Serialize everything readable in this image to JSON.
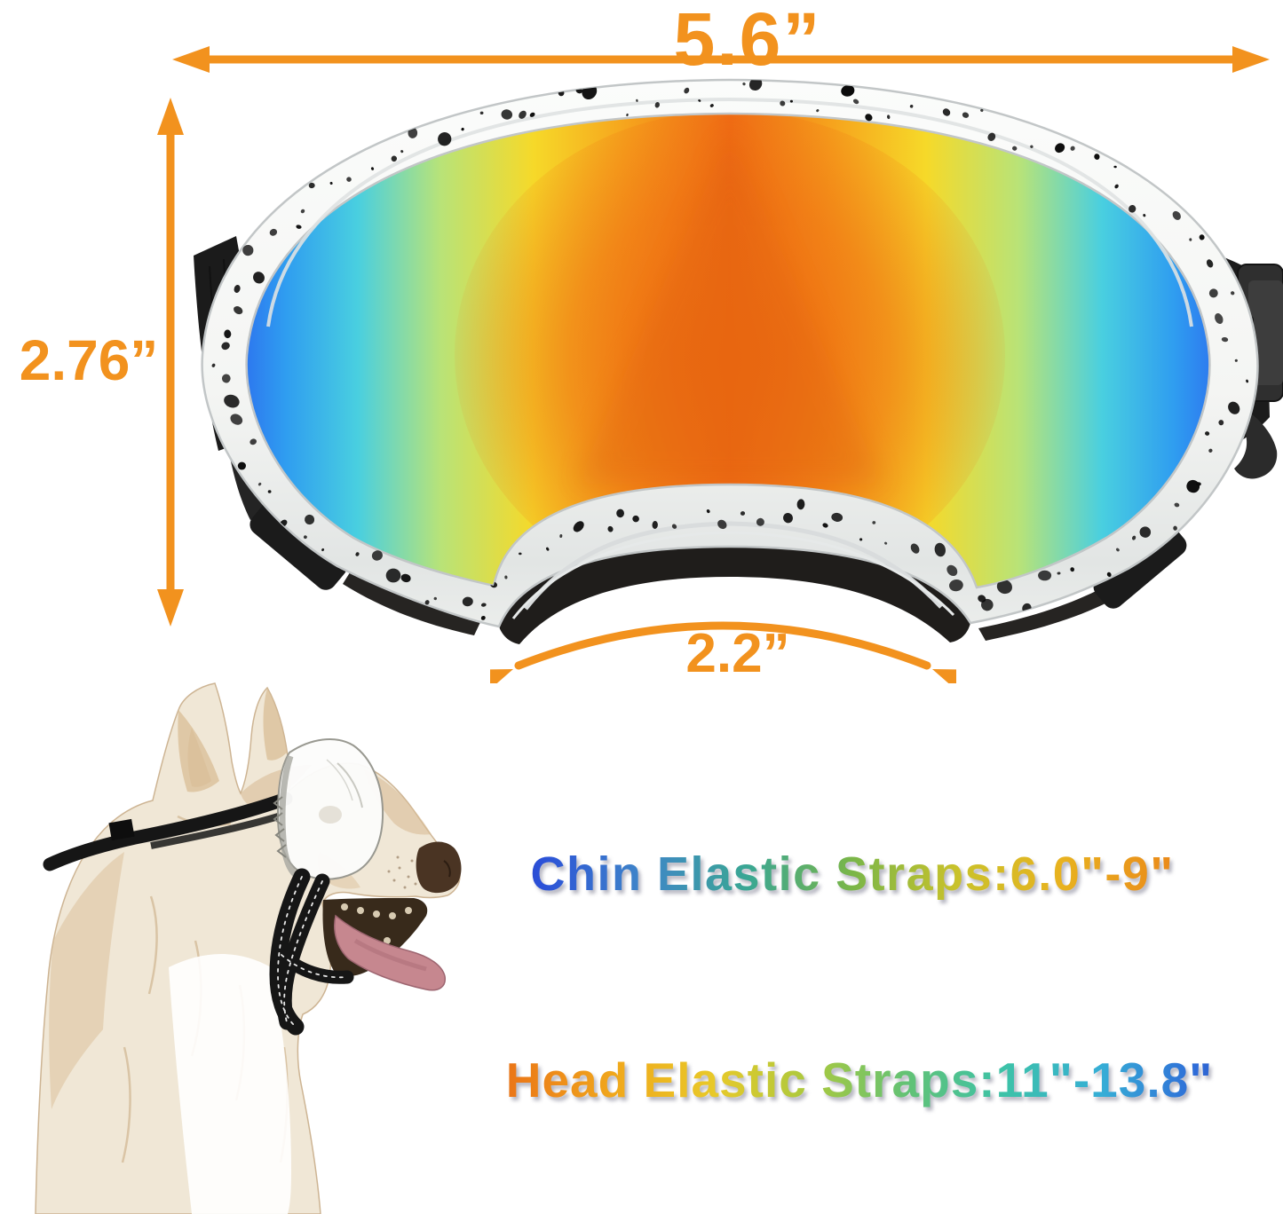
{
  "image_type": "product dimension diagram",
  "background": "#ffffff",
  "annotations": {
    "arrow_color": "#F2921E",
    "width_label": "5.6”",
    "height_label": "2.76”",
    "lens_bridge_label": "2.2”"
  },
  "strap_info": {
    "chin_label": "Chin Elastic Straps:6.0\"-9\"",
    "head_label": "Head Elastic Straps:11\"-13.8\"",
    "chin_gradient": [
      "#2e2f8f",
      "#2b50d8",
      "#3f86c8",
      "#3aa793",
      "#7ab648",
      "#c9c22b",
      "#e8b21f",
      "#ea8c1a",
      "#e2621c"
    ],
    "head_gradient": [
      "#dd4f1e",
      "#ec7c18",
      "#f0a91c",
      "#e8c929",
      "#a9c93f",
      "#62c276",
      "#3cc2a8",
      "#36aed6",
      "#2f6bd8",
      "#28339b"
    ]
  },
  "product": {
    "name": "dog goggles — white speckled frame, rainbow mirrored lens, black straps",
    "frame_color": "#f4f5f3",
    "speckle_color": "#0b0b0b",
    "strap_color": "#1b1b1b",
    "foam_color": "#1f1d1b",
    "lens_center_color": "#ee6a12",
    "lens_gradient_half": [
      "#2b59ee",
      "#2f9df0",
      "#49cfe0",
      "#b8e378",
      "#f6d929",
      "#f6a41d",
      "#ef6c15"
    ]
  },
  "dog_sketch": {
    "fur_color": "#f0e7d6",
    "patch_color": "#d9bd96",
    "tongue_color": "#c6878f",
    "mouth_color": "#382a1b",
    "nose_color": "#4a3423",
    "strap_color": "#161616"
  }
}
